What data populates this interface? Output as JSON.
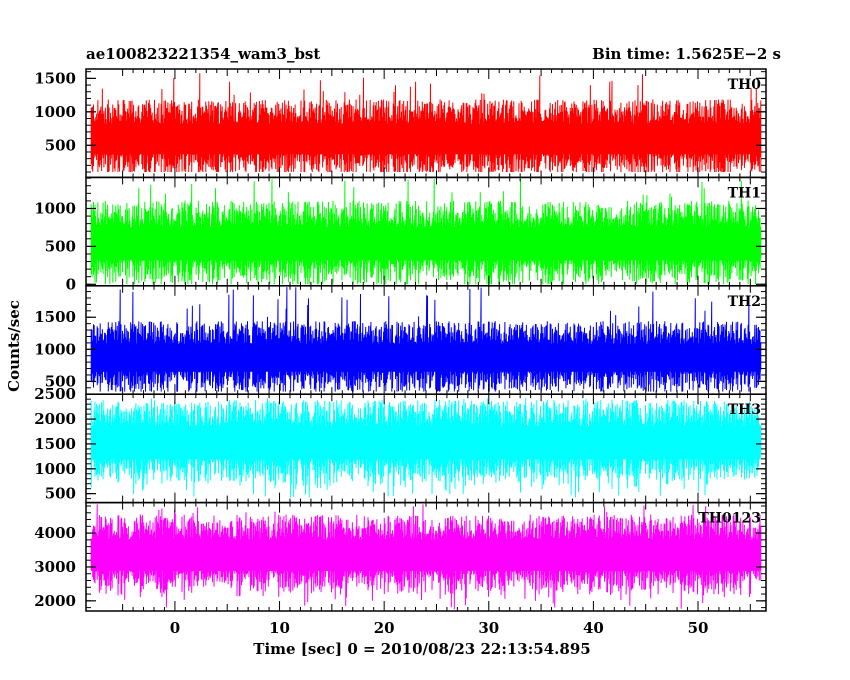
{
  "header": {
    "title": "ae100823221354_wam3_bst",
    "bin_time": "Bin time: 1.5625E−2 s"
  },
  "chart_data": {
    "type": "line",
    "x_range": [
      -8,
      56
    ],
    "xlim": [
      -8.5,
      56.5
    ],
    "xlabel": "Time [sec] 0 = 2010/08/23 22:13:54.895",
    "ylabel": "Counts/sec",
    "x_ticks": [
      0,
      10,
      20,
      30,
      40,
      50
    ],
    "x_tick_labels": [
      "0",
      "10",
      "20",
      "30",
      "40",
      "50"
    ],
    "grid": false,
    "legend": "none",
    "panels": [
      {
        "name": "TH0",
        "color": "#ff0000",
        "ylim": [
          20,
          1640
        ],
        "yticks": [
          500,
          1000,
          1500
        ],
        "ytick_labels": [
          "500",
          "1000",
          "1500"
        ],
        "mean": 620,
        "typical_range": [
          120,
          1250
        ],
        "max": 1590,
        "min": 100,
        "floor": 140
      },
      {
        "name": "TH1",
        "color": "#00ff00",
        "ylim": [
          -20,
          1410
        ],
        "yticks": [
          0,
          500,
          1000
        ],
        "ytick_labels": [
          "0",
          "500",
          "1000"
        ],
        "mean": 560,
        "typical_range": [
          60,
          1150
        ],
        "max": 1400,
        "min": 0,
        "floor": 150
      },
      {
        "name": "TH2",
        "color": "#0000ff",
        "ylim": [
          300,
          1990
        ],
        "yticks": [
          500,
          1000,
          1500
        ],
        "ytick_labels": [
          "500",
          "1000",
          "1500"
        ],
        "mean": 890,
        "typical_range": [
          400,
          1500
        ],
        "max": 1980,
        "min": 340,
        "floor": 650
      },
      {
        "name": "TH3",
        "color": "#00ffff",
        "ylim": [
          320,
          2500
        ],
        "yticks": [
          500,
          1000,
          1500,
          2000,
          2500
        ],
        "ytick_labels": [
          "500",
          "1000",
          "1500",
          "2000",
          "2500"
        ],
        "mean": 1560,
        "typical_range": [
          600,
          2250
        ],
        "max": 2420,
        "min": 420,
        "floor": 700
      },
      {
        "name": "TH0123",
        "color": "#ff00ff",
        "ylim": [
          1700,
          4900
        ],
        "yticks": [
          2000,
          3000,
          4000
        ],
        "ytick_labels": [
          "2000",
          "3000",
          "4000"
        ],
        "mean": 3400,
        "typical_range": [
          2100,
          4400
        ],
        "max": 4880,
        "min": 1740,
        "floor": 2100
      }
    ]
  }
}
